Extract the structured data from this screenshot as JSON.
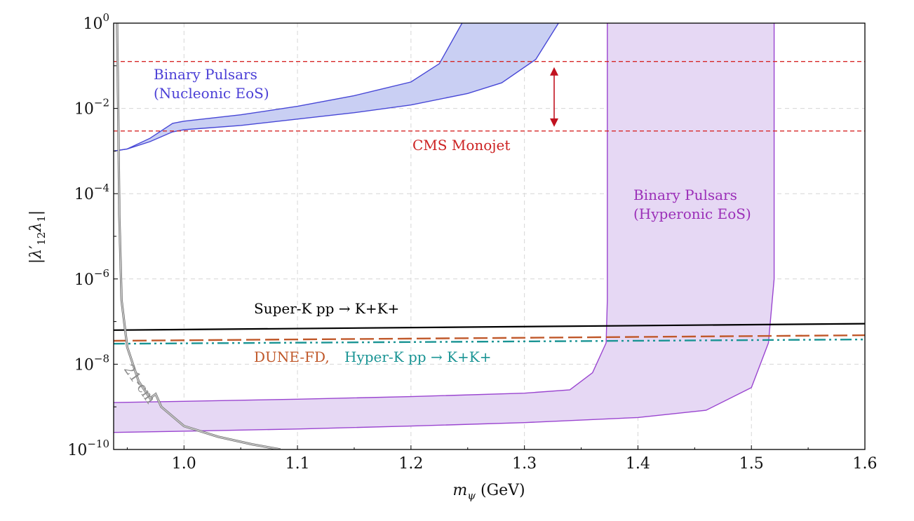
{
  "chart_data": {
    "type": "area",
    "xlabel": "m_ψ (GeV)",
    "ylabel": "|λ′12λ1|",
    "xlim": [
      0.938,
      1.6
    ],
    "ylim_log10": [
      -10,
      0
    ],
    "yscale": "log",
    "grid": true,
    "x_ticks": [
      "1.0",
      "1.1",
      "1.2",
      "1.3",
      "1.4",
      "1.5",
      "1.6"
    ],
    "x_tick_values": [
      1.0,
      1.1,
      1.2,
      1.3,
      1.4,
      1.5,
      1.6
    ],
    "y_ticks": [
      {
        "log": 0,
        "base": "10",
        "exp": "0"
      },
      {
        "log": -2,
        "base": "10",
        "exp": "−2"
      },
      {
        "log": -4,
        "base": "10",
        "exp": "−4"
      },
      {
        "log": -6,
        "base": "10",
        "exp": "−6"
      },
      {
        "log": -8,
        "base": "10",
        "exp": "−8"
      },
      {
        "log": -10,
        "base": "10",
        "exp": "−10"
      }
    ],
    "series": [
      {
        "name": "Binary Pulsars (Nucleonic EoS)",
        "kind": "band",
        "color": "#4747d6",
        "fill": "#c9cff3",
        "upper": [
          [
            0.938,
            -3.0
          ],
          [
            0.95,
            -2.95
          ],
          [
            0.97,
            -2.7
          ],
          [
            0.99,
            -2.35
          ],
          [
            1.0,
            -2.3
          ],
          [
            1.05,
            -2.15
          ],
          [
            1.1,
            -1.95
          ],
          [
            1.15,
            -1.7
          ],
          [
            1.2,
            -1.38
          ],
          [
            1.225,
            -0.95
          ],
          [
            1.245,
            0.0
          ]
        ],
        "lower": [
          [
            0.938,
            -3.0
          ],
          [
            0.95,
            -2.95
          ],
          [
            0.97,
            -2.78
          ],
          [
            0.99,
            -2.55
          ],
          [
            1.0,
            -2.5
          ],
          [
            1.05,
            -2.4
          ],
          [
            1.1,
            -2.25
          ],
          [
            1.15,
            -2.1
          ],
          [
            1.2,
            -1.92
          ],
          [
            1.25,
            -1.65
          ],
          [
            1.28,
            -1.4
          ],
          [
            1.31,
            -0.85
          ],
          [
            1.33,
            0.0
          ]
        ]
      },
      {
        "name": "Binary Pulsars (Hyperonic EoS)",
        "kind": "band",
        "color": "#9a45d0",
        "fill": "#e6d8f4",
        "upper": [
          [
            0.938,
            -8.9
          ],
          [
            1.0,
            -8.87
          ],
          [
            1.1,
            -8.82
          ],
          [
            1.2,
            -8.76
          ],
          [
            1.3,
            -8.68
          ],
          [
            1.34,
            -8.6
          ],
          [
            1.36,
            -8.2
          ],
          [
            1.372,
            -7.5
          ],
          [
            1.373,
            -6.5
          ],
          [
            1.373,
            0.0
          ]
        ],
        "lower": [
          [
            0.938,
            -9.6
          ],
          [
            1.0,
            -9.57
          ],
          [
            1.1,
            -9.52
          ],
          [
            1.2,
            -9.45
          ],
          [
            1.3,
            -9.37
          ],
          [
            1.4,
            -9.25
          ],
          [
            1.46,
            -9.08
          ],
          [
            1.5,
            -8.55
          ],
          [
            1.515,
            -7.5
          ],
          [
            1.52,
            -6.0
          ],
          [
            1.52,
            0.0
          ]
        ]
      },
      {
        "name": "CMS Monojet",
        "kind": "hband",
        "color": "#d62828",
        "y_log": [
          -0.9,
          -2.53
        ]
      },
      {
        "name": "Super-K pp → K+K+",
        "kind": "line",
        "color": "#000000",
        "points": [
          [
            0.938,
            -7.2
          ],
          [
            1.6,
            -7.05
          ]
        ]
      },
      {
        "name": "DUNE-FD",
        "kind": "line",
        "color": "#c0582a",
        "points": [
          [
            0.938,
            -7.45
          ],
          [
            1.6,
            -7.32
          ]
        ]
      },
      {
        "name": "Hyper-K pp → K+K+",
        "kind": "line",
        "color": "#1a9494",
        "points": [
          [
            0.938,
            -7.52
          ],
          [
            1.6,
            -7.42
          ]
        ]
      },
      {
        "name": "21-cm",
        "kind": "line",
        "color": "#9a9a9a",
        "points": [
          [
            0.941,
            0.0
          ],
          [
            0.942,
            -2.0
          ],
          [
            0.943,
            -4.5
          ],
          [
            0.945,
            -6.5
          ],
          [
            0.95,
            -7.6
          ],
          [
            0.96,
            -8.4
          ],
          [
            0.97,
            -8.8
          ],
          [
            0.975,
            -8.7
          ],
          [
            0.98,
            -9.0
          ],
          [
            1.0,
            -9.45
          ],
          [
            1.03,
            -9.7
          ],
          [
            1.06,
            -9.88
          ],
          [
            1.085,
            -10.0
          ]
        ]
      }
    ],
    "annotations": {
      "nucleonic_line1": "Binary Pulsars",
      "nucleonic_line2": "(Nucleonic EoS)",
      "hyperonic_line1": "Binary Pulsars",
      "hyperonic_line2": "(Hyperonic EoS)",
      "cms": "CMS Monojet",
      "superk": "Super-K pp → K+K+",
      "dune": "DUNE-FD,",
      "hyperk": "Hyper-K pp → K+K+",
      "cm21": "21-cm"
    }
  }
}
